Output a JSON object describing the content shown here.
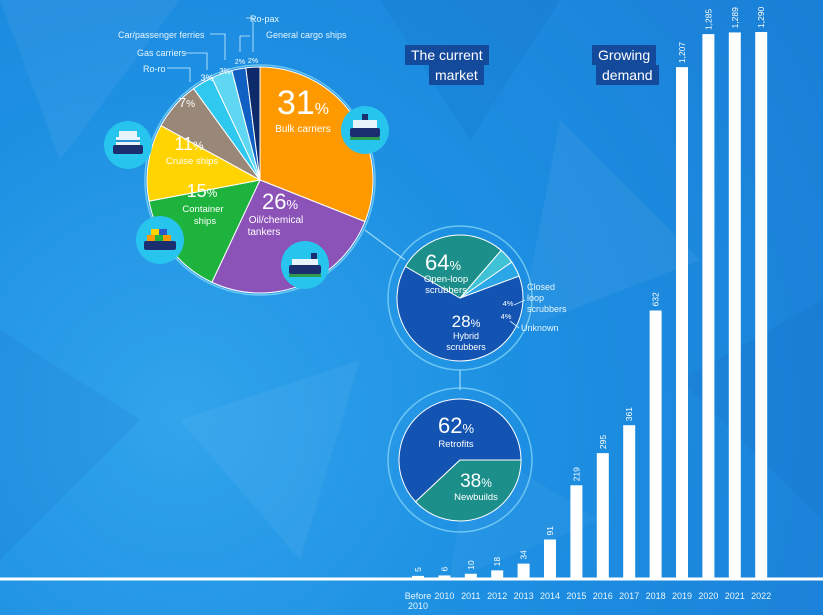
{
  "headings": {
    "current_market_line1": "The current",
    "current_market_line2": "market",
    "growing_demand_line1": "Growing",
    "growing_demand_line2": "demand"
  },
  "chart_data": [
    {
      "type": "pie",
      "slices": [
        {
          "label": "Bulk carriers",
          "pct_text": "31",
          "value": 31,
          "color": "#ff9900"
        },
        {
          "label": "Oil/chemical tankers",
          "pct_text": "26",
          "value": 26,
          "color": "#8b52b8"
        },
        {
          "label": "Container ships",
          "pct_text": "15",
          "value": 15,
          "color": "#1db33c"
        },
        {
          "label": "Cruise ships",
          "pct_text": "11",
          "value": 11,
          "color": "#ffd400"
        },
        {
          "label": "Ro-ro",
          "pct_text": "7",
          "value": 7,
          "color": "#998878"
        },
        {
          "label": "Gas carriers",
          "pct_text": "3",
          "value": 3,
          "color": "#2fc8ee"
        },
        {
          "label": "Car/passenger ferries",
          "pct_text": "3",
          "value": 3,
          "color": "#5fd6f2"
        },
        {
          "label": "General cargo ships",
          "pct_text": "2",
          "value": 2,
          "color": "#1060c4"
        },
        {
          "label": "Ro-pax",
          "pct_text": "2",
          "value": 2,
          "color": "#0d2a6a"
        }
      ],
      "pct_sign": "%"
    },
    {
      "type": "pie",
      "slices": [
        {
          "label": "Open-loop scrubbers",
          "pct_text": "64",
          "value": 64,
          "color": "#1353b2"
        },
        {
          "label": "Closed loop scrubbers",
          "pct_text": "4",
          "value": 4,
          "color": "#2ba6e6"
        },
        {
          "label": "Unknown",
          "pct_text": "4",
          "value": 4,
          "color": "#3fc2d6"
        },
        {
          "label": "Hybrid scrubbers",
          "pct_text": "28",
          "value": 28,
          "color": "#1c8f8a"
        }
      ],
      "pct_sign": "%"
    },
    {
      "type": "pie",
      "slices": [
        {
          "label": "Retrofits",
          "pct_text": "62",
          "value": 62,
          "color": "#1353b2"
        },
        {
          "label": "Newbuilds",
          "pct_text": "38",
          "value": 38,
          "color": "#1c8f8a"
        }
      ],
      "pct_sign": "%"
    },
    {
      "type": "bar",
      "categories": [
        "Before 2010",
        "2010",
        "2011",
        "2012",
        "2013",
        "2014",
        "2015",
        "2016",
        "2017",
        "2018",
        "2019",
        "2020",
        "2021",
        "2022"
      ],
      "category_lines": [
        [
          "Before",
          "2010"
        ],
        [
          "2010"
        ],
        [
          "2011"
        ],
        [
          "2012"
        ],
        [
          "2013"
        ],
        [
          "2014"
        ],
        [
          "2015"
        ],
        [
          "2016"
        ],
        [
          "2017"
        ],
        [
          "2018"
        ],
        [
          "2019"
        ],
        [
          "2020"
        ],
        [
          "2021"
        ],
        [
          "2022"
        ]
      ],
      "values": [
        5,
        6,
        10,
        18,
        34,
        91,
        219,
        295,
        361,
        632,
        1207,
        1285,
        1289,
        1290
      ],
      "value_labels": [
        "5",
        "6",
        "10",
        "18",
        "34",
        "91",
        "219",
        "295",
        "361",
        "632",
        "1,207",
        "1,285",
        "1,289",
        "1,290"
      ],
      "bar_color": "#ffffff"
    }
  ],
  "colors": {
    "background": "#1d8fe2",
    "heading_bg": "#134a9c",
    "icon_circle": "#27c4ee",
    "ship_hull": "#1b2f70"
  }
}
